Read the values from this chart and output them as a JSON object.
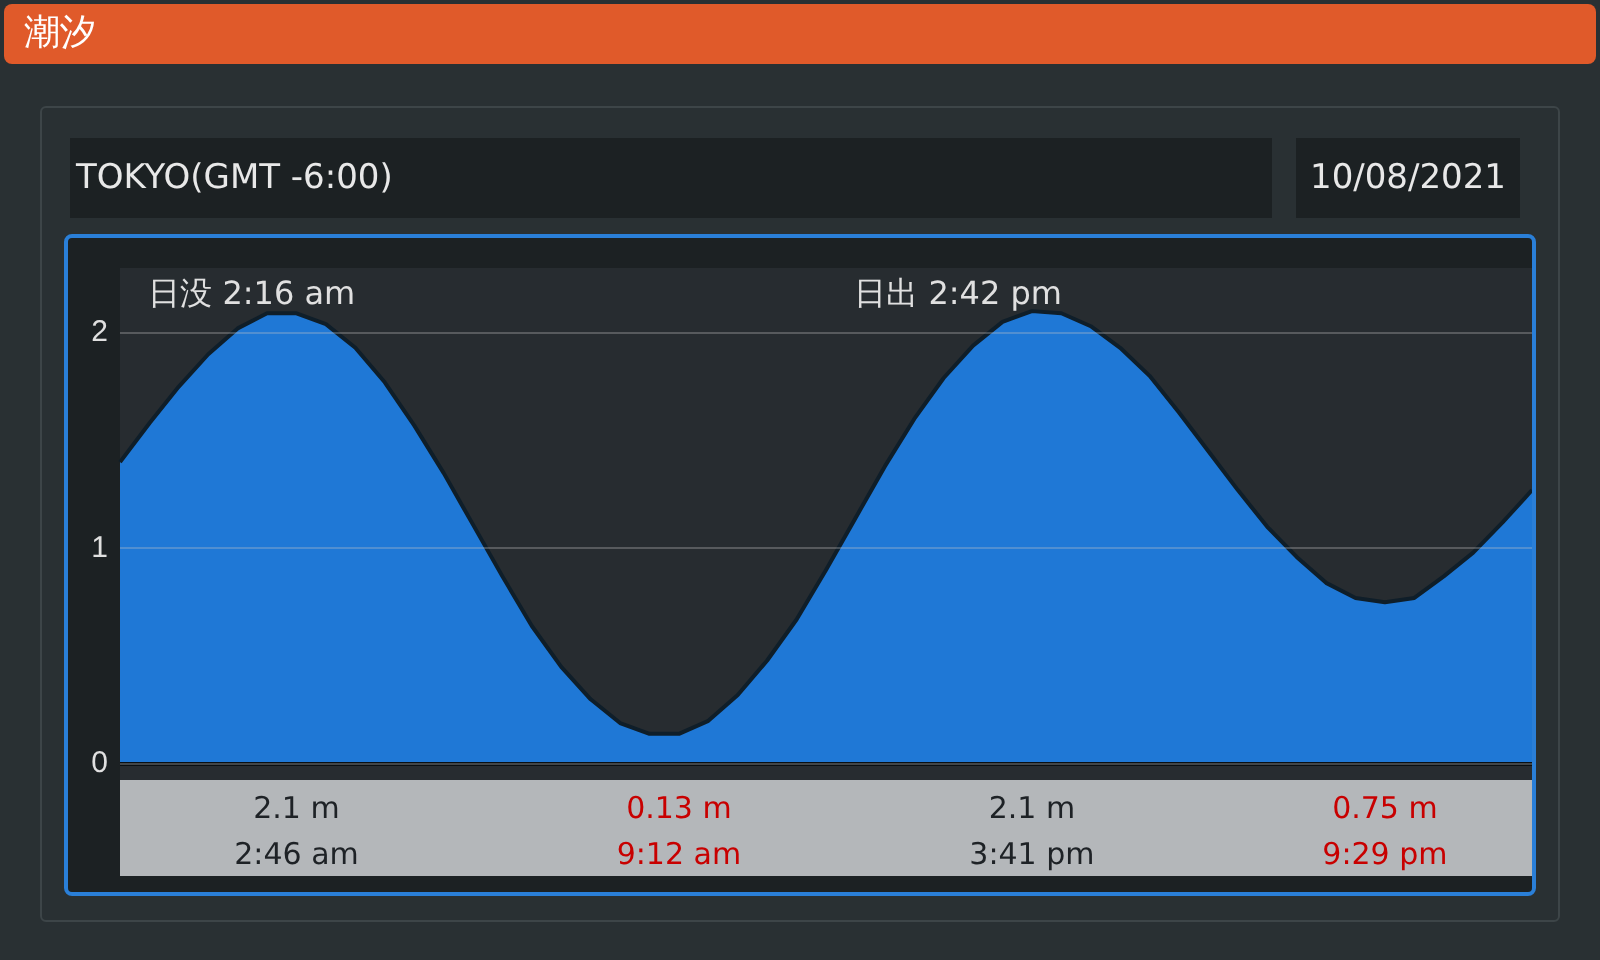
{
  "chart_data": {
    "type": "area",
    "title": "潮汐",
    "subtitle": "TOKYO(GMT -6:00)",
    "categories": [
      null,
      null,
      null,
      null,
      null,
      null,
      null,
      null,
      null,
      null,
      null,
      null,
      null,
      null,
      null,
      null,
      null,
      null,
      null,
      null,
      null,
      null,
      null,
      null,
      null,
      null,
      null,
      null,
      null,
      null,
      null,
      null,
      null,
      null,
      null,
      null,
      null,
      null,
      null,
      null,
      null,
      null,
      null,
      null,
      null,
      null,
      null,
      null,
      null
    ],
    "series": [
      {
        "color": "#1f78d6",
        "values": [
          1.4,
          1.58,
          1.75,
          1.9,
          2.02,
          2.09,
          2.09,
          2.04,
          1.93,
          1.77,
          1.57,
          1.35,
          1.11,
          0.87,
          0.64,
          0.45,
          0.3,
          0.19,
          0.14,
          0.14,
          0.2,
          0.32,
          0.48,
          0.67,
          0.9,
          1.14,
          1.38,
          1.6,
          1.79,
          1.94,
          2.05,
          2.1,
          2.09,
          2.03,
          1.93,
          1.8,
          1.63,
          1.45,
          1.27,
          1.1,
          0.96,
          0.84,
          0.77,
          0.75,
          0.77,
          0.87,
          0.98,
          1.12,
          1.27
        ]
      }
    ],
    "ylim": [
      0,
      2.3
    ],
    "yticks": [
      0,
      1,
      2
    ],
    "grid": "y",
    "tick_labels": "y",
    "legend": false,
    "marker": "none",
    "annotations": [
      "10/08/2021",
      "日没 2:16 am",
      "日出 2:42 pm",
      "2.1 m",
      "2:46 am",
      "0.13 m",
      "9:12 am",
      "2.1 m",
      "3:41 pm",
      "0.75 m",
      "9:29 pm"
    ]
  }
}
